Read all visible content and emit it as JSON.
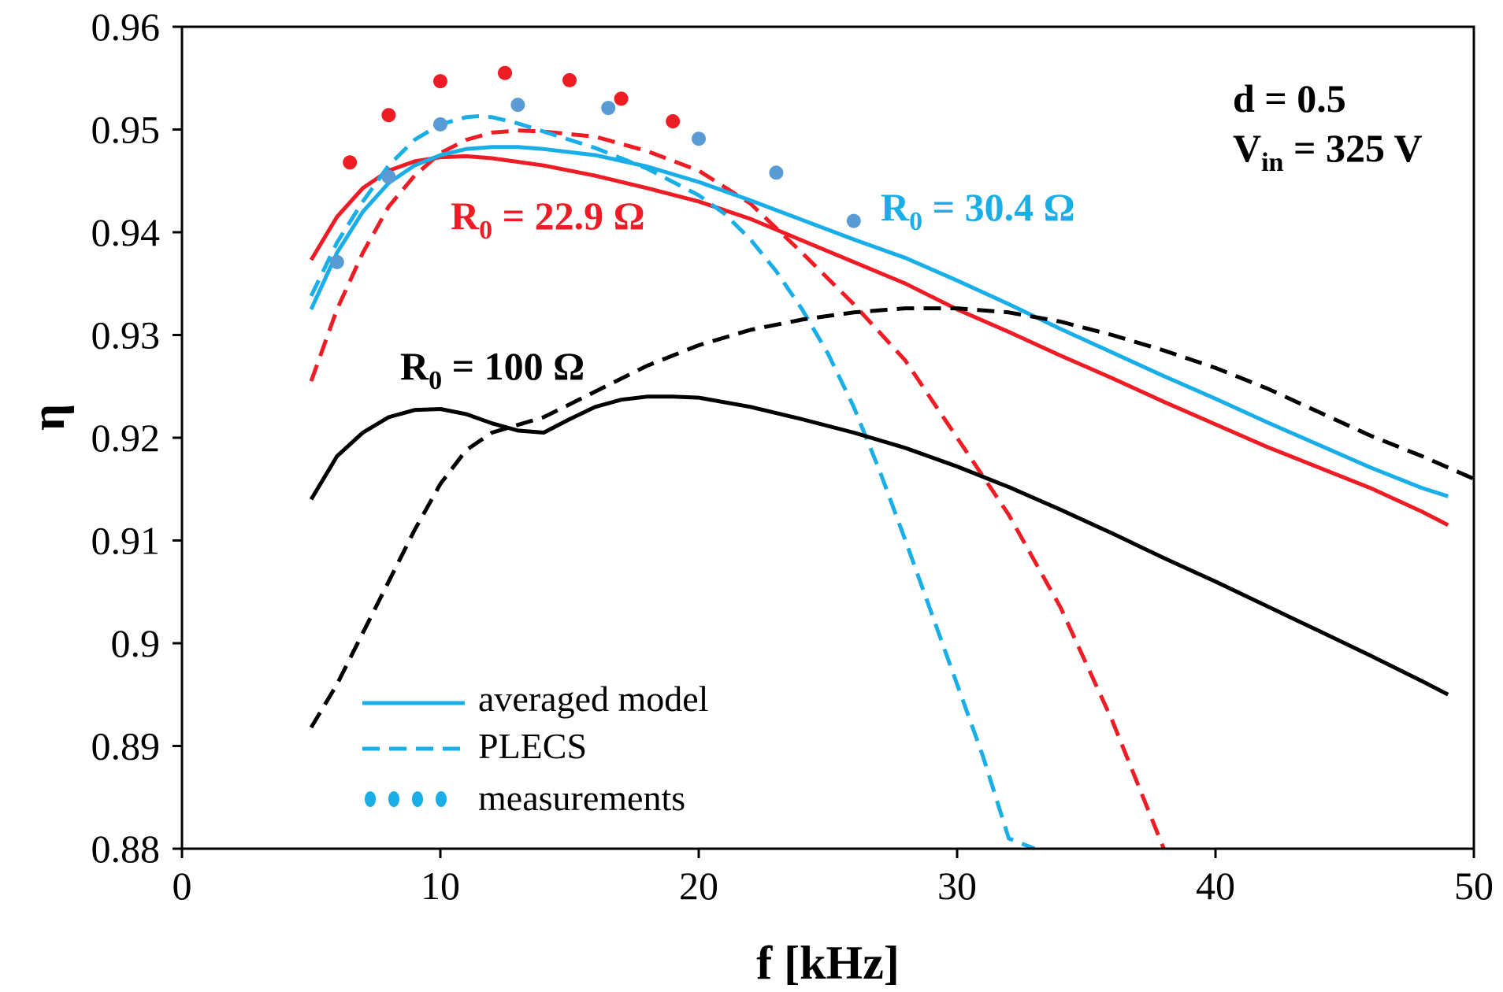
{
  "chart_data": {
    "type": "line",
    "title": "",
    "xlabel": "f [kHz]",
    "ylabel": "η",
    "xlim": [
      0,
      50
    ],
    "ylim": [
      0.88,
      0.96
    ],
    "xticks": [
      0,
      10,
      20,
      30,
      40,
      50
    ],
    "xtick_labels": [
      "0",
      "10",
      "20",
      "30",
      "40",
      "50"
    ],
    "yticks": [
      0.88,
      0.89,
      0.9,
      0.91,
      0.92,
      0.93,
      0.94,
      0.95,
      0.96
    ],
    "ytick_labels": [
      "0.88",
      "0.89",
      "0.9",
      "0.91",
      "0.92",
      "0.93",
      "0.94",
      "0.95",
      "0.96"
    ],
    "grid": false,
    "colors": {
      "red": "#ee1c24",
      "blue": "#1aaee8",
      "black": "#000000",
      "blue_points": "#5b9bd5"
    },
    "conditions": {
      "line1_main": "d = 0.5",
      "line2_main": "V",
      "line2_sub": "in",
      "line2_rest": " = 325 V"
    },
    "series": [
      {
        "name": "R0 = 22.9 Ω averaged model",
        "model": "averaged model",
        "color": "red",
        "style": "solid",
        "x": [
          5,
          6,
          7,
          8,
          9,
          10,
          11,
          12,
          14,
          16,
          18,
          20,
          22,
          24,
          26,
          28,
          30,
          32,
          34,
          36,
          38,
          40,
          42,
          44,
          46,
          48,
          49
        ],
        "y": [
          0.9373,
          0.9415,
          0.9443,
          0.946,
          0.9469,
          0.9473,
          0.9474,
          0.9472,
          0.9465,
          0.9455,
          0.9443,
          0.943,
          0.9413,
          0.9392,
          0.9371,
          0.935,
          0.9325,
          0.9303,
          0.928,
          0.9258,
          0.9235,
          0.9213,
          0.9191,
          0.9171,
          0.9151,
          0.9128,
          0.9115
        ]
      },
      {
        "name": "R0 = 22.9 Ω PLECS",
        "model": "PLECS",
        "color": "red",
        "style": "dashed",
        "x": [
          5,
          6,
          7,
          8,
          9,
          10,
          11,
          12,
          13,
          14,
          16,
          18,
          20,
          22,
          24,
          26,
          28,
          30,
          32,
          34,
          36,
          38
        ],
        "y": [
          0.9255,
          0.9325,
          0.938,
          0.9425,
          0.9455,
          0.9477,
          0.949,
          0.9497,
          0.9499,
          0.9498,
          0.9493,
          0.9479,
          0.946,
          0.9428,
          0.938,
          0.933,
          0.9275,
          0.92,
          0.9125,
          0.9035,
          0.8925,
          0.88
        ]
      },
      {
        "name": "R0 = 22.9 Ω measurements",
        "model": "measurements",
        "color": "red",
        "style": "points",
        "x": [
          6.5,
          8,
          10,
          12.5,
          15,
          17,
          19
        ],
        "y": [
          0.9468,
          0.9514,
          0.9547,
          0.9555,
          0.9548,
          0.953,
          0.9508
        ]
      },
      {
        "name": "R0 = 30.4 Ω averaged model",
        "model": "averaged model",
        "color": "blue",
        "style": "solid",
        "x": [
          5,
          6,
          7,
          8,
          9,
          10,
          11,
          12,
          13,
          14,
          16,
          18,
          20,
          22,
          24,
          26,
          28,
          30,
          32,
          34,
          36,
          38,
          40,
          42,
          44,
          46,
          48,
          49
        ],
        "y": [
          0.9325,
          0.938,
          0.942,
          0.9448,
          0.9465,
          0.9475,
          0.9481,
          0.9483,
          0.9483,
          0.9481,
          0.9475,
          0.9464,
          0.9449,
          0.9431,
          0.9412,
          0.9393,
          0.9375,
          0.9353,
          0.933,
          0.9306,
          0.9283,
          0.926,
          0.9238,
          0.9215,
          0.9193,
          0.9171,
          0.9151,
          0.9143
        ]
      },
      {
        "name": "R0 = 30.4 Ω PLECS",
        "model": "PLECS",
        "color": "blue",
        "style": "dashed",
        "x": [
          5,
          6,
          7,
          8,
          9,
          10,
          11,
          11.5,
          12,
          13,
          14,
          16,
          18,
          20,
          21,
          22,
          23,
          24,
          25,
          26,
          27,
          28,
          29,
          30,
          31,
          32,
          33
        ],
        "y": [
          0.9338,
          0.939,
          0.943,
          0.9465,
          0.949,
          0.9505,
          0.9512,
          0.9513,
          0.9512,
          0.9506,
          0.9498,
          0.9482,
          0.9462,
          0.9436,
          0.9418,
          0.9393,
          0.9362,
          0.9325,
          0.9282,
          0.923,
          0.9168,
          0.91,
          0.903,
          0.896,
          0.889,
          0.881,
          0.88
        ]
      },
      {
        "name": "R0 = 30.4 Ω measurements",
        "model": "measurements",
        "color": "blue_points",
        "style": "points",
        "x": [
          6,
          8,
          10,
          13,
          16.5,
          20,
          23,
          26
        ],
        "y": [
          0.9371,
          0.9454,
          0.9505,
          0.9524,
          0.9521,
          0.9491,
          0.9458,
          0.9411
        ]
      },
      {
        "name": "R0 = 100 Ω averaged model",
        "model": "averaged model",
        "color": "black",
        "style": "solid",
        "x": [
          5,
          6,
          7,
          8,
          9,
          10,
          11,
          12,
          13,
          14,
          15,
          16,
          17,
          18,
          19,
          20,
          22,
          24,
          26,
          28,
          30,
          32,
          34,
          36,
          38,
          40,
          42,
          44,
          46,
          48,
          49
        ],
        "y": [
          0.914,
          0.9182,
          0.9205,
          0.922,
          0.9227,
          0.9228,
          0.9223,
          0.9214,
          0.9207,
          0.9205,
          0.9218,
          0.923,
          0.9237,
          0.924,
          0.924,
          0.9239,
          0.923,
          0.9218,
          0.9205,
          0.919,
          0.9172,
          0.9152,
          0.913,
          0.9107,
          0.9083,
          0.906,
          0.9036,
          0.9012,
          0.8988,
          0.8963,
          0.895
        ]
      },
      {
        "name": "R0 = 100 Ω PLECS",
        "model": "PLECS",
        "color": "black",
        "style": "dashed",
        "x": [
          5,
          6,
          7,
          8,
          9,
          10,
          11,
          12,
          14,
          16,
          18,
          20,
          22,
          24,
          26,
          28,
          30,
          32,
          34,
          36,
          38,
          40,
          42,
          44,
          46,
          48,
          50
        ],
        "y": [
          0.8918,
          0.896,
          0.901,
          0.906,
          0.911,
          0.9155,
          0.9188,
          0.9205,
          0.922,
          0.9245,
          0.927,
          0.929,
          0.9305,
          0.9315,
          0.9322,
          0.9326,
          0.9326,
          0.9322,
          0.9313,
          0.93,
          0.9285,
          0.9268,
          0.9248,
          0.9225,
          0.9202,
          0.9182,
          0.916
        ]
      }
    ],
    "annotations": [
      {
        "id": "r229",
        "main": "R",
        "sub": "0",
        "rest": " = 22.9 Ω",
        "color": "red"
      },
      {
        "id": "r304",
        "main": "R",
        "sub": "0",
        "rest": " = 30.4 Ω",
        "color": "blue"
      },
      {
        "id": "r100",
        "main": "R",
        "sub": "0",
        "rest": " = 100 Ω",
        "color": "black"
      }
    ],
    "legend": {
      "position": "bottom-left",
      "entries": [
        {
          "label": "averaged model",
          "style": "solid"
        },
        {
          "label": "PLECS",
          "style": "dashed"
        },
        {
          "label": "measurements",
          "style": "points"
        }
      ]
    }
  }
}
